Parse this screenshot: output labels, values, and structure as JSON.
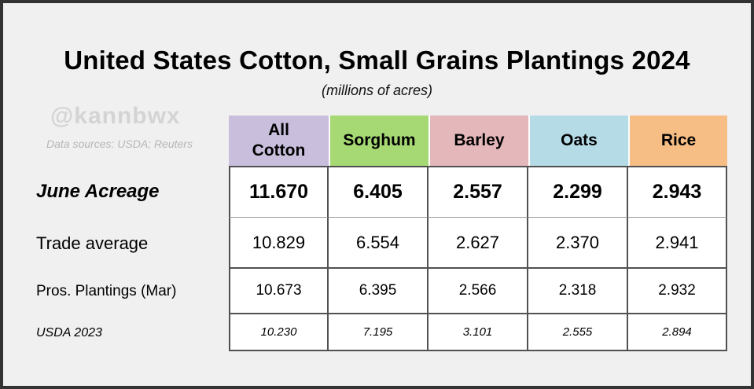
{
  "title": "United States Cotton, Small Grains Plantings 2024",
  "subtitle": "(millions of acres)",
  "watermark": {
    "handle": "@kannbwx",
    "sources": "Data sources: USDA; Reuters"
  },
  "colors": {
    "background": "#f0f0f0",
    "frame_border": "#333333",
    "all_cotton_header": "#c9bfdd",
    "sorghum_header": "#a6d973",
    "barley_header": "#e4b7ba",
    "oats_header": "#b5dbe7",
    "rice_header": "#f6bd84"
  },
  "table": {
    "columns": [
      {
        "label": "All\nCotton",
        "color": "#c9bfdd"
      },
      {
        "label": "Sorghum",
        "color": "#a6d973"
      },
      {
        "label": "Barley",
        "color": "#e4b7ba"
      },
      {
        "label": "Oats",
        "color": "#b5dbe7"
      },
      {
        "label": "Rice",
        "color": "#f6bd84"
      }
    ],
    "rows": [
      {
        "label": "June Acreage",
        "values": [
          "11.670",
          "6.405",
          "2.557",
          "2.299",
          "2.943"
        ]
      },
      {
        "label": "Trade average",
        "values": [
          "10.829",
          "6.554",
          "2.627",
          "2.370",
          "2.941"
        ]
      },
      {
        "label": "Pros. Plantings (Mar)",
        "values": [
          "10.673",
          "6.395",
          "2.566",
          "2.318",
          "2.932"
        ]
      },
      {
        "label": "USDA 2023",
        "values": [
          "10.230",
          "7.195",
          "3.101",
          "2.555",
          "2.894"
        ]
      }
    ]
  },
  "chart_data": {
    "type": "table",
    "title": "United States Cotton, Small Grains Plantings 2024",
    "subtitle": "(millions of acres)",
    "units": "millions of acres",
    "columns": [
      "All Cotton",
      "Sorghum",
      "Barley",
      "Oats",
      "Rice"
    ],
    "rows": [
      {
        "label": "June Acreage",
        "values": [
          11.67,
          6.405,
          2.557,
          2.299,
          2.943
        ]
      },
      {
        "label": "Trade average",
        "values": [
          10.829,
          6.554,
          2.627,
          2.37,
          2.941
        ]
      },
      {
        "label": "Pros. Plantings (Mar)",
        "values": [
          10.673,
          6.395,
          2.566,
          2.318,
          2.932
        ]
      },
      {
        "label": "USDA 2023",
        "values": [
          10.23,
          7.195,
          3.101,
          2.555,
          2.894
        ]
      }
    ]
  }
}
